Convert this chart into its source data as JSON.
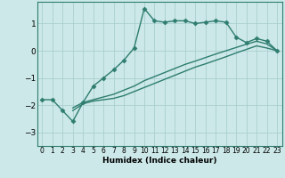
{
  "title": "",
  "xlabel": "Humidex (Indice chaleur)",
  "ylabel": "",
  "bg_color": "#cce8e8",
  "line_color": "#2e7d6e",
  "grid_color": "#aacfcf",
  "xlim": [
    -0.5,
    23.5
  ],
  "ylim": [
    -3.5,
    1.8
  ],
  "yticks": [
    -3,
    -2,
    -1,
    0,
    1
  ],
  "xticks": [
    0,
    1,
    2,
    3,
    4,
    5,
    6,
    7,
    8,
    9,
    10,
    11,
    12,
    13,
    14,
    15,
    16,
    17,
    18,
    19,
    20,
    21,
    22,
    23
  ],
  "line1_x": [
    0,
    1,
    2,
    3,
    4,
    5,
    6,
    7,
    8,
    9,
    10,
    11,
    12,
    13,
    14,
    15,
    16,
    17,
    18,
    19,
    20,
    21,
    22,
    23
  ],
  "line1_y": [
    -1.8,
    -1.8,
    -2.2,
    -2.6,
    -1.9,
    -1.3,
    -1.0,
    -0.7,
    -0.35,
    0.1,
    1.55,
    1.1,
    1.05,
    1.1,
    1.1,
    1.0,
    1.05,
    1.1,
    1.05,
    0.5,
    0.3,
    0.45,
    0.35,
    0.0
  ],
  "line2_x": [
    3,
    4,
    5,
    6,
    7,
    8,
    9,
    10,
    11,
    12,
    13,
    14,
    15,
    16,
    17,
    18,
    19,
    20,
    21,
    22,
    23
  ],
  "line2_y": [
    -2.2,
    -1.95,
    -1.85,
    -1.8,
    -1.75,
    -1.65,
    -1.5,
    -1.35,
    -1.2,
    -1.05,
    -0.9,
    -0.75,
    -0.6,
    -0.48,
    -0.35,
    -0.22,
    -0.08,
    0.05,
    0.18,
    0.1,
    0.0
  ],
  "line3_x": [
    3,
    4,
    5,
    6,
    7,
    8,
    9,
    10,
    11,
    12,
    13,
    14,
    15,
    16,
    17,
    18,
    19,
    20,
    21,
    22,
    23
  ],
  "line3_y": [
    -2.1,
    -1.9,
    -1.8,
    -1.7,
    -1.6,
    -1.45,
    -1.3,
    -1.1,
    -0.95,
    -0.8,
    -0.65,
    -0.5,
    -0.38,
    -0.25,
    -0.12,
    0.0,
    0.12,
    0.24,
    0.35,
    0.25,
    0.0
  ],
  "marker": "D",
  "markersize": 2.5,
  "linewidth": 1.0
}
